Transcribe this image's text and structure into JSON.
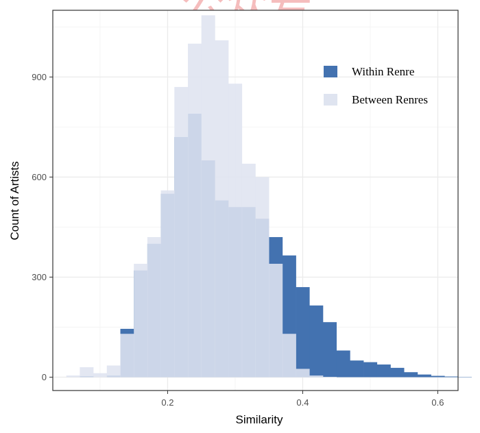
{
  "chart_data": {
    "type": "bar",
    "subtype": "overlapping-histogram",
    "xlabel": "Similarity",
    "ylabel": "Count of Artists",
    "xlim": [
      0.03,
      0.63
    ],
    "ylim": [
      -40,
      1100
    ],
    "x_ticks": [
      {
        "value": 0.2,
        "label": "0.2"
      },
      {
        "value": 0.4,
        "label": "0.4"
      },
      {
        "value": 0.6,
        "label": "0.6"
      }
    ],
    "y_ticks": [
      {
        "value": 0,
        "label": "0"
      },
      {
        "value": 300,
        "label": "300"
      },
      {
        "value": 600,
        "label": "600"
      },
      {
        "value": 900,
        "label": "900"
      }
    ],
    "grid": true,
    "legend_position": "top-right",
    "bin_start": 0.05,
    "bin_width": 0.02,
    "series": [
      {
        "name": "Within Renre",
        "color": "#4372b0",
        "values": [
          0,
          3,
          0,
          5,
          145,
          320,
          400,
          550,
          720,
          790,
          650,
          530,
          510,
          510,
          475,
          420,
          365,
          270,
          215,
          165,
          80,
          50,
          45,
          38,
          28,
          15,
          8,
          4,
          2,
          1
        ]
      },
      {
        "name": "Between Renres",
        "color": "#dfe4f0",
        "values": [
          5,
          30,
          12,
          35,
          130,
          340,
          420,
          560,
          870,
          1000,
          1085,
          1010,
          880,
          640,
          600,
          340,
          130,
          25,
          5,
          1,
          0,
          0,
          0,
          0,
          0,
          0,
          0,
          0,
          0,
          0
        ]
      }
    ]
  },
  "watermark": "公众号"
}
